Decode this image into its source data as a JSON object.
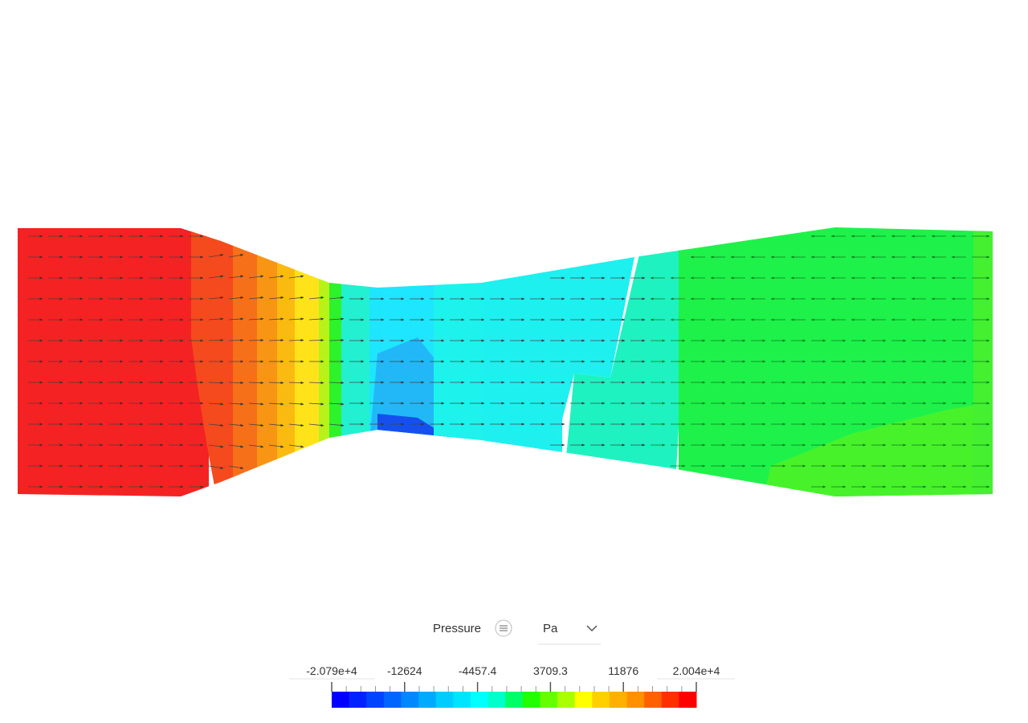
{
  "legend": {
    "title": "Pressure",
    "unit": "Pa",
    "ticks": [
      "-2.079e+4",
      "-12624",
      "-4457.4",
      "3709.3",
      "11876",
      "2.004e+4"
    ],
    "colors": [
      "#0000ff",
      "#0022ff",
      "#0044ff",
      "#0066ff",
      "#0088ff",
      "#00aaff",
      "#00ccff",
      "#00e5ff",
      "#00ffff",
      "#00ffcc",
      "#00ff66",
      "#22ff00",
      "#66ff00",
      "#aaff00",
      "#ffff00",
      "#ffd000",
      "#ffb000",
      "#ff9000",
      "#ff6000",
      "#ff3000",
      "#ff0000"
    ]
  }
}
